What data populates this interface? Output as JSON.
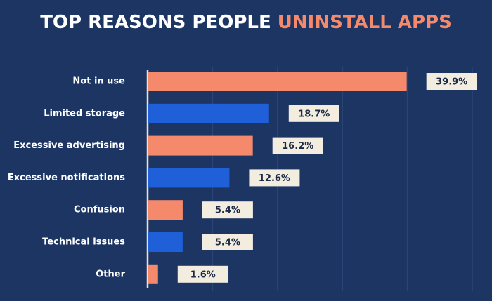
{
  "chart_data": {
    "type": "bar",
    "orientation": "horizontal",
    "title": "TOP REASONS PEOPLE",
    "title_highlight": "UNINSTALL APPS",
    "title_color": "#ffffff",
    "title_highlight_color": "#f4896b",
    "categories": [
      "Not in use",
      "Limited storage",
      "Excessive advertising",
      "Excessive notifications",
      "Confusion",
      "Technical issues",
      "Other"
    ],
    "values": [
      39.9,
      18.7,
      16.2,
      12.6,
      5.4,
      5.4,
      1.6
    ],
    "value_labels": [
      "39.9%",
      "18.7%",
      "16.2%",
      "12.6%",
      "5.4%",
      "5.4%",
      "1.6%"
    ],
    "colors": [
      "#f4896b",
      "#1f5fd8",
      "#f4896b",
      "#1f5fd8",
      "#f4896b",
      "#1f5fd8",
      "#f4896b"
    ],
    "xlim": [
      0,
      50
    ],
    "xticks": [
      0,
      10,
      20,
      30,
      40,
      50
    ],
    "grid": true
  }
}
